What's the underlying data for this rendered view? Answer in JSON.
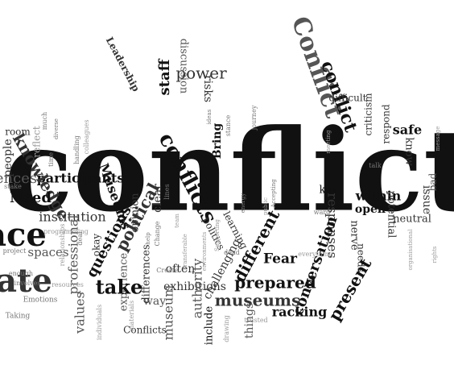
{
  "title": "Conflict word cloud",
  "colors": {
    "background": "#ffffff",
    "black": "#111111",
    "dark": "#333333",
    "mid": "#555555",
    "gray": "#777777",
    "light": "#999999"
  },
  "words": [
    {
      "text": "conflict",
      "weight": 10,
      "color": "black",
      "orientation": "horizontal"
    },
    {
      "text": "Conflict",
      "weight": 6,
      "color": "mid",
      "orientation": "vertical"
    },
    {
      "text": "conflict",
      "weight": 5,
      "color": "black",
      "orientation": "vertical"
    },
    {
      "text": "conflicts",
      "weight": 4,
      "color": "black",
      "orientation": "vertical"
    },
    {
      "text": "power",
      "weight": 4,
      "color": "dark",
      "orientation": "horizontal"
    },
    {
      "text": "Leadership",
      "weight": 2,
      "color": "dark",
      "orientation": "vertical"
    },
    {
      "text": "staff",
      "weight": 3,
      "color": "black",
      "orientation": "vertical"
    },
    {
      "text": "discussion",
      "weight": 2,
      "color": "mid",
      "orientation": "vertical"
    },
    {
      "text": "risks",
      "weight": 2,
      "color": "dark",
      "orientation": "vertical"
    },
    {
      "text": "Bring",
      "weight": 2,
      "color": "black",
      "orientation": "vertical"
    },
    {
      "text": "difficult",
      "weight": 2,
      "color": "dark",
      "orientation": "horizontal"
    },
    {
      "text": "criticism",
      "weight": 2,
      "color": "dark",
      "orientation": "vertical"
    },
    {
      "text": "respond",
      "weight": 2,
      "color": "dark",
      "orientation": "vertical"
    },
    {
      "text": "safe",
      "weight": 2,
      "color": "black",
      "orientation": "horizontal"
    },
    {
      "text": "know",
      "weight": 2,
      "color": "dark",
      "orientation": "vertical"
    },
    {
      "text": "bad",
      "weight": 2,
      "color": "mid",
      "orientation": "vertical"
    },
    {
      "text": "issue",
      "weight": 2,
      "color": "dark",
      "orientation": "vertical"
    },
    {
      "text": "neutral",
      "weight": 2,
      "color": "dark",
      "orientation": "horizontal"
    },
    {
      "text": "within",
      "weight": 3,
      "color": "black",
      "orientation": "horizontal"
    },
    {
      "text": "key",
      "weight": 2,
      "color": "black",
      "orientation": "horizontal"
    },
    {
      "text": "open",
      "weight": 2,
      "color": "black",
      "orientation": "horizontal"
    },
    {
      "text": "potential",
      "weight": 2,
      "color": "dark",
      "orientation": "vertical"
    },
    {
      "text": "nerve",
      "weight": 2,
      "color": "dark",
      "orientation": "vertical"
    },
    {
      "text": "responses",
      "weight": 3,
      "color": "dark",
      "orientation": "vertical"
    },
    {
      "text": "needs",
      "weight": 2,
      "color": "dark",
      "orientation": "vertical"
    },
    {
      "text": "present",
      "weight": 3,
      "color": "black",
      "orientation": "vertical"
    },
    {
      "text": "conversation",
      "weight": 4,
      "color": "black",
      "orientation": "vertical"
    },
    {
      "text": "Fear",
      "weight": 3,
      "color": "black",
      "orientation": "horizontal"
    },
    {
      "text": "prepared",
      "weight": 4,
      "color": "black",
      "orientation": "horizontal"
    },
    {
      "text": "museums",
      "weight": 4,
      "color": "dark",
      "orientation": "horizontal"
    },
    {
      "text": "racking",
      "weight": 3,
      "color": "black",
      "orientation": "horizontal"
    },
    {
      "text": "different",
      "weight": 4,
      "color": "black",
      "orientation": "vertical"
    },
    {
      "text": "learning",
      "weight": 2,
      "color": "dark",
      "orientation": "vertical"
    },
    {
      "text": "politics",
      "weight": 2,
      "color": "dark",
      "orientation": "vertical"
    },
    {
      "text": "challenging",
      "weight": 3,
      "color": "dark",
      "orientation": "vertical"
    },
    {
      "text": "exhibitions",
      "weight": 3,
      "color": "dark",
      "orientation": "horizontal"
    },
    {
      "text": "things",
      "weight": 2,
      "color": "mid",
      "orientation": "vertical"
    },
    {
      "text": "include",
      "weight": 2,
      "color": "black",
      "orientation": "vertical"
    },
    {
      "text": "authority",
      "weight": 3,
      "color": "mid",
      "orientation": "vertical"
    },
    {
      "text": "museum",
      "weight": 3,
      "color": "mid",
      "orientation": "vertical"
    },
    {
      "text": "often",
      "weight": 2,
      "color": "dark",
      "orientation": "horizontal"
    },
    {
      "text": "way",
      "weight": 2,
      "color": "mid",
      "orientation": "horizontal"
    },
    {
      "text": "differences",
      "weight": 3,
      "color": "dark",
      "orientation": "vertical"
    },
    {
      "text": "experience",
      "weight": 3,
      "color": "mid",
      "orientation": "vertical"
    },
    {
      "text": "Conflicts",
      "weight": 2,
      "color": "dark",
      "orientation": "horizontal"
    },
    {
      "text": "political",
      "weight": 4,
      "color": "dark",
      "orientation": "vertical"
    },
    {
      "text": "clear",
      "weight": 2,
      "color": "dark",
      "orientation": "vertical"
    },
    {
      "text": "opinion",
      "weight": 2,
      "color": "dark",
      "orientation": "vertical"
    },
    {
      "text": "questions",
      "weight": 4,
      "color": "black",
      "orientation": "vertical"
    },
    {
      "text": "take",
      "weight": 4,
      "color": "black",
      "orientation": "horizontal"
    },
    {
      "text": "values",
      "weight": 3,
      "color": "mid",
      "orientation": "vertical"
    },
    {
      "text": "okay",
      "weight": 2,
      "color": "dark",
      "orientation": "vertical"
    },
    {
      "text": "Museums",
      "weight": 3,
      "color": "black",
      "orientation": "vertical"
    },
    {
      "text": "participants",
      "weight": 3,
      "color": "black",
      "orientation": "horizontal"
    },
    {
      "text": "institution",
      "weight": 3,
      "color": "dark",
      "orientation": "horizontal"
    },
    {
      "text": "professional",
      "weight": 3,
      "color": "mid",
      "orientation": "vertical"
    },
    {
      "text": "spaces",
      "weight": 3,
      "color": "mid",
      "orientation": "horizontal"
    },
    {
      "text": "knowledge",
      "weight": 4,
      "color": "dark",
      "orientation": "vertical"
    },
    {
      "text": "Need",
      "weight": 3,
      "color": "black",
      "orientation": "horizontal"
    },
    {
      "text": "room",
      "weight": 2,
      "color": "dark",
      "orientation": "horizontal"
    },
    {
      "text": "people",
      "weight": 2,
      "color": "dark",
      "orientation": "vertical"
    },
    {
      "text": "ences",
      "weight": 3,
      "color": "mid",
      "orientation": "horizontal"
    },
    {
      "text": "ace",
      "weight": 6,
      "color": "black",
      "orientation": "horizontal"
    },
    {
      "text": "bate",
      "weight": 5,
      "color": "dark",
      "orientation": "horizontal"
    },
    {
      "text": "reflect",
      "weight": 1,
      "color": "light",
      "orientation": "vertical"
    },
    {
      "text": "energy",
      "weight": 1,
      "color": "gray",
      "orientation": "vertical"
    },
    {
      "text": "ideas",
      "weight": 1,
      "color": "gray",
      "orientation": "vertical"
    },
    {
      "text": "diverse",
      "weight": 1,
      "color": "gray",
      "orientation": "vertical"
    },
    {
      "text": "Accepting",
      "weight": 1,
      "color": "gray",
      "orientation": "vertical"
    },
    {
      "text": "meeting",
      "weight": 1,
      "color": "light",
      "orientation": "vertical"
    },
    {
      "text": "message",
      "weight": 1,
      "color": "light",
      "orientation": "vertical"
    },
    {
      "text": "organisational",
      "weight": 1,
      "color": "light",
      "orientation": "vertical"
    },
    {
      "text": "rights",
      "weight": 1,
      "color": "light",
      "orientation": "vertical"
    },
    {
      "text": "public",
      "weight": 1,
      "color": "light",
      "orientation": "vertical"
    },
    {
      "text": "trusted",
      "weight": 1,
      "color": "light",
      "orientation": "horizontal"
    },
    {
      "text": "everything",
      "weight": 1,
      "color": "light",
      "orientation": "horizontal"
    },
    {
      "text": "drawing",
      "weight": 1,
      "color": "light",
      "orientation": "vertical"
    },
    {
      "text": "Create",
      "weight": 1,
      "color": "gray",
      "orientation": "horizontal"
    },
    {
      "text": "materials",
      "weight": 1,
      "color": "light",
      "orientation": "vertical"
    },
    {
      "text": "individuals",
      "weight": 1,
      "color": "light",
      "orientation": "vertical"
    },
    {
      "text": "Taking",
      "weight": 1,
      "color": "gray",
      "orientation": "horizontal"
    },
    {
      "text": "Emotions",
      "weight": 1,
      "color": "gray",
      "orientation": "horizontal"
    },
    {
      "text": "involves",
      "weight": 1,
      "color": "gray",
      "orientation": "horizontal"
    },
    {
      "text": "resources",
      "weight": 1,
      "color": "light",
      "orientation": "horizontal"
    },
    {
      "text": "enough",
      "weight": 1,
      "color": "gray",
      "orientation": "horizontal"
    },
    {
      "text": "project",
      "weight": 1,
      "color": "gray",
      "orientation": "horizontal"
    },
    {
      "text": "stake",
      "weight": 1,
      "color": "gray",
      "orientation": "horizontal"
    },
    {
      "text": "time",
      "weight": 1,
      "color": "gray",
      "orientation": "vertical"
    },
    {
      "text": "handling",
      "weight": 1,
      "color": "gray",
      "orientation": "vertical"
    },
    {
      "text": "much",
      "weight": 1,
      "color": "gray",
      "orientation": "vertical"
    },
    {
      "text": "programming",
      "weight": 1,
      "color": "light",
      "orientation": "horizontal"
    },
    {
      "text": "relationships",
      "weight": 1,
      "color": "light",
      "orientation": "vertical"
    },
    {
      "text": "deal",
      "weight": 1,
      "color": "gray",
      "orientation": "vertical"
    },
    {
      "text": "Change",
      "weight": 1,
      "color": "gray",
      "orientation": "vertical"
    },
    {
      "text": "lines",
      "weight": 1,
      "color": "gray",
      "orientation": "vertical"
    },
    {
      "text": "stance",
      "weight": 1,
      "color": "gray",
      "orientation": "vertical"
    },
    {
      "text": "journey",
      "weight": 1,
      "color": "gray",
      "orientation": "vertical"
    },
    {
      "text": "talk",
      "weight": 1,
      "color": "gray",
      "orientation": "horizontal"
    },
    {
      "text": "ward",
      "weight": 1,
      "color": "gray",
      "orientation": "horizontal"
    },
    {
      "text": "colleagues",
      "weight": 1,
      "color": "light",
      "orientation": "vertical"
    },
    {
      "text": "Supporting",
      "weight": 1,
      "color": "light",
      "orientation": "vertical"
    },
    {
      "text": "environments",
      "weight": 1,
      "color": "light",
      "orientation": "vertical"
    },
    {
      "text": "transferable",
      "weight": 1,
      "color": "light",
      "orientation": "vertical"
    },
    {
      "text": "team",
      "weight": 1,
      "color": "light",
      "orientation": "vertical"
    },
    {
      "text": "dead",
      "weight": 1,
      "color": "gray",
      "orientation": "horizontal"
    },
    {
      "text": "help",
      "weight": 1,
      "color": "gray",
      "orientation": "vertical"
    }
  ]
}
